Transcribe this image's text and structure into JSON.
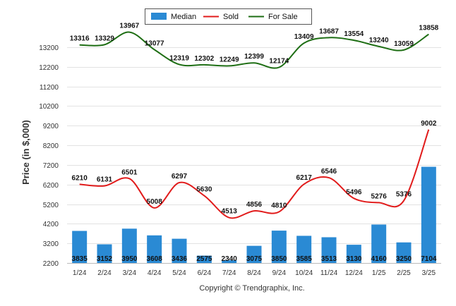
{
  "chart_data": {
    "type": "bar",
    "categories": [
      "1/24",
      "2/24",
      "3/24",
      "4/24",
      "5/24",
      "6/24",
      "7/24",
      "8/24",
      "9/24",
      "10/24",
      "11/24",
      "12/24",
      "1/25",
      "2/25",
      "3/25"
    ],
    "series": [
      {
        "name": "Median",
        "kind": "bar",
        "color": "#2a8ad4",
        "values": [
          3835,
          3152,
          3950,
          3608,
          3436,
          2575,
          2340,
          3075,
          3850,
          3585,
          3513,
          3130,
          4160,
          3250,
          7104
        ]
      },
      {
        "name": "Sold",
        "kind": "line",
        "color": "#e11b1b",
        "values": [
          6210,
          6131,
          6501,
          5008,
          6297,
          5630,
          4513,
          4856,
          4810,
          6217,
          6546,
          5496,
          5276,
          5376,
          9002
        ]
      },
      {
        "name": "For Sale",
        "kind": "line",
        "color": "#1e6e14",
        "values": [
          13316,
          13329,
          13967,
          13077,
          12319,
          12302,
          12249,
          12399,
          12174,
          13409,
          13687,
          13554,
          13240,
          13059,
          13858
        ]
      }
    ],
    "ylabel": "Price (in $,000)",
    "yticks": [
      2200,
      3200,
      4200,
      5200,
      6200,
      7200,
      8200,
      9200,
      10200,
      11200,
      12200,
      13200
    ],
    "ylim": [
      2200,
      14600
    ],
    "grid": true,
    "legend_position": "top-center"
  },
  "copyright": "Copyright © Trendgraphix, Inc."
}
